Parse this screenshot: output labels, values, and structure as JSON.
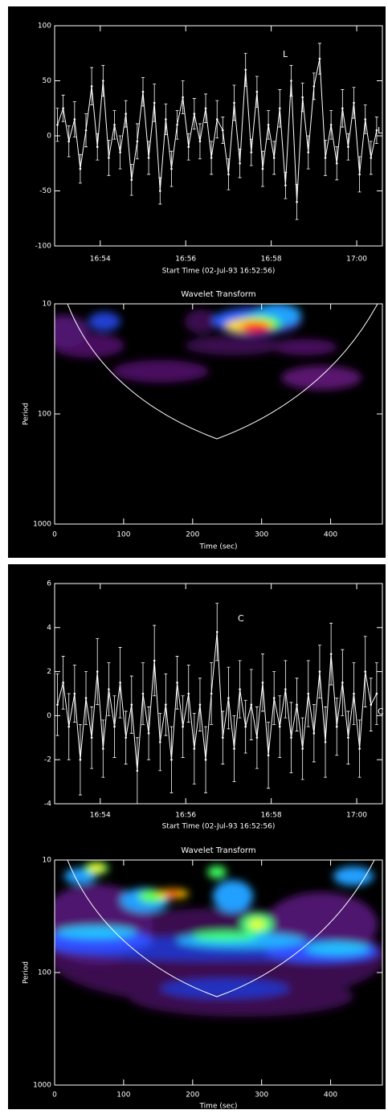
{
  "chart_data": [
    {
      "type": "line",
      "xlabel": "Start Time (02-Jul-93 16:52:56)",
      "x": [
        4,
        12,
        20,
        28,
        36,
        44,
        52,
        60,
        68,
        76,
        84,
        92,
        100,
        108,
        116,
        124,
        132,
        140,
        148,
        156,
        164,
        172,
        180,
        188,
        196,
        204,
        212,
        220,
        228,
        236,
        244,
        252,
        260,
        268,
        276,
        284,
        292,
        300,
        308,
        316,
        324,
        332,
        340,
        348,
        356,
        364,
        372,
        380,
        388,
        396,
        404,
        412,
        420,
        428,
        436,
        444,
        452
      ],
      "series": [
        {
          "color": "#ffffff",
          "values": [
            10,
            25,
            -5,
            15,
            -30,
            5,
            45,
            -10,
            50,
            -20,
            10,
            -15,
            20,
            -40,
            -5,
            40,
            -20,
            30,
            -50,
            15,
            -30,
            10,
            35,
            -10,
            20,
            -5,
            25,
            -20,
            15,
            5,
            -35,
            30,
            -25,
            60,
            -15,
            40,
            -30,
            10,
            -20,
            25,
            -45,
            50,
            -60,
            35,
            -15,
            45,
            70,
            -20,
            10,
            -25,
            25,
            -10,
            30,
            -35,
            15,
            -20,
            5
          ],
          "errors": [
            15,
            12,
            14,
            16,
            13,
            15,
            17,
            12,
            14,
            16,
            13,
            15,
            12,
            14,
            16,
            13,
            15,
            17,
            12,
            14,
            16,
            13,
            15,
            12,
            14,
            16,
            13,
            15,
            17,
            12,
            14,
            16,
            13,
            15,
            12,
            14,
            16,
            13,
            15,
            17,
            12,
            14,
            16,
            13,
            15,
            12,
            14,
            16,
            13,
            15,
            17,
            12,
            14,
            16,
            13,
            15,
            12
          ]
        }
      ],
      "xlim": [
        0,
        460
      ],
      "xticks": [
        {
          "value": 64,
          "label": "16:54"
        },
        {
          "value": 184,
          "label": "16:56"
        },
        {
          "value": 304,
          "label": "16:58"
        },
        {
          "value": 424,
          "label": "17:00"
        }
      ],
      "ylim": [
        -100,
        100
      ],
      "yticks": [
        100,
        50,
        0,
        -50,
        -100
      ],
      "annotations": [
        "L",
        "L"
      ]
    },
    {
      "type": "wavelet",
      "title": "Wavelet Transform",
      "xlabel": "Time (sec)",
      "ylabel": "Period",
      "xlim": [
        0,
        475
      ],
      "xticks": [
        0,
        100,
        200,
        300,
        400
      ],
      "ylim": [
        10,
        1000
      ],
      "yticks": [
        10,
        100,
        1000
      ],
      "log_scale": true,
      "y_reversed": true
    },
    {
      "type": "line",
      "xlabel": "Start Time (02-Jul-93 16:52:56)",
      "x": [
        4,
        12,
        20,
        28,
        36,
        44,
        52,
        60,
        68,
        76,
        84,
        92,
        100,
        108,
        116,
        124,
        132,
        140,
        148,
        156,
        164,
        172,
        180,
        188,
        196,
        204,
        212,
        220,
        228,
        236,
        244,
        252,
        260,
        268,
        276,
        284,
        292,
        300,
        308,
        316,
        324,
        332,
        340,
        348,
        356,
        364,
        372,
        380,
        388,
        396,
        404,
        412,
        420,
        428,
        436,
        444,
        452
      ],
      "series": [
        {
          "color": "#ffffff",
          "values": [
            0.5,
            1.5,
            -0.5,
            1,
            -2,
            0.8,
            -1,
            2,
            -1.5,
            1.2,
            -0.5,
            1.5,
            -1,
            0.5,
            -2.5,
            1,
            -0.8,
            2.5,
            -1.2,
            0.5,
            -2,
            1.5,
            -0.5,
            1,
            -1.5,
            0.5,
            -2,
            1,
            3.8,
            -1,
            0.8,
            -1.5,
            1.2,
            -0.5,
            0.5,
            -1,
            1.5,
            -1.8,
            0.8,
            -0.5,
            1.2,
            -1,
            0.5,
            -1.5,
            1,
            -0.8,
            2,
            -1.2,
            2.8,
            -0.5,
            1.5,
            -1,
            1,
            -1.5,
            2,
            0.5,
            1
          ],
          "errors": [
            1.4,
            1.2,
            1.5,
            1.3,
            1.6,
            1.2,
            1.4,
            1.5,
            1.3,
            1.2,
            1.4,
            1.6,
            1.2,
            1.3,
            1.5,
            1.4,
            1.2,
            1.6,
            1.3,
            1.4,
            1.5,
            1.2,
            1.4,
            1.3,
            1.6,
            1.2,
            1.5,
            1.4,
            1.3,
            1.2,
            1.4,
            1.5,
            1.3,
            1.2,
            1.6,
            1.4,
            1.3,
            1.5,
            1.2,
            1.4,
            1.3,
            1.6,
            1.2,
            1.4,
            1.5,
            1.3,
            1.2,
            1.6,
            1.4,
            1.3,
            1.5,
            1.2,
            1.4,
            1.3,
            1.6,
            1.2,
            1.4
          ]
        }
      ],
      "xlim": [
        0,
        460
      ],
      "xticks": [
        {
          "value": 64,
          "label": "16:54"
        },
        {
          "value": 184,
          "label": "16:56"
        },
        {
          "value": 304,
          "label": "16:58"
        },
        {
          "value": 424,
          "label": "17:00"
        }
      ],
      "ylim": [
        -4,
        6
      ],
      "yticks": [
        6,
        4,
        2,
        0,
        -2,
        -4
      ],
      "annotations": [
        "C",
        "C"
      ]
    },
    {
      "type": "wavelet",
      "title": "Wavelet Transform",
      "xlabel": "Time (sec)",
      "ylabel": "Period",
      "xlim": [
        0,
        475
      ],
      "xticks": [
        0,
        100,
        200,
        300,
        400
      ],
      "ylim": [
        10,
        1000
      ],
      "yticks": [
        10,
        100,
        1000
      ],
      "log_scale": true,
      "y_reversed": true
    }
  ]
}
